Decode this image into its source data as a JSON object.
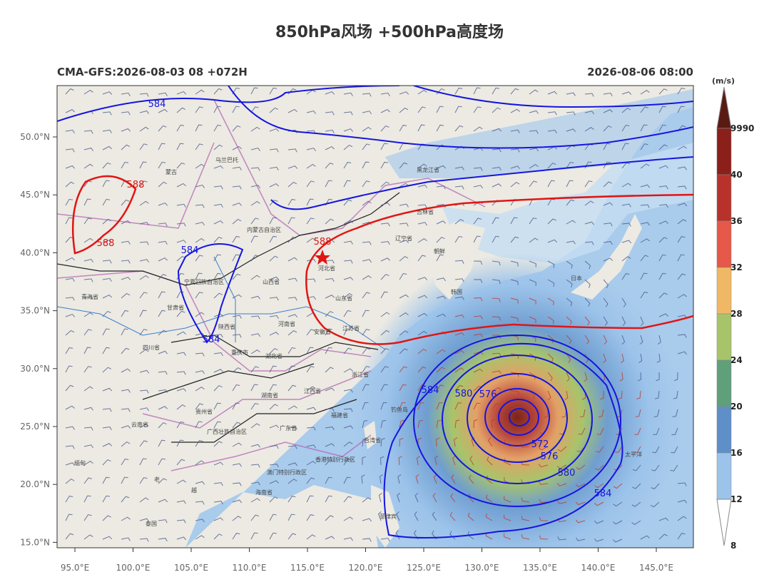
{
  "header": {
    "title": "850hPa风场 +500hPa高度场",
    "run": "CMA-GFS:2026-08-03 08 +072H",
    "valid": "2026-08-06 08:00"
  },
  "map": {
    "lat_labels": [
      "50.0°N",
      "45.0°N",
      "40.0°N",
      "35.0°N",
      "30.0°N",
      "25.0°N",
      "20.0°N",
      "15.0°N"
    ],
    "lon_labels": [
      "95.0°E",
      "100.0°E",
      "105.0°E",
      "110.0°E",
      "115.0°E",
      "120.0°E",
      "125.0°E",
      "130.0°E",
      "135.0°E",
      "140.0°E",
      "145.0°E"
    ],
    "contour_labels": [
      "584",
      "588",
      "588",
      "584",
      "588",
      "584",
      "584",
      "580",
      "576",
      "572",
      "576",
      "580",
      "584"
    ],
    "places": [
      "蒙古",
      "内蒙古自治区",
      "黑龙江省",
      "吉林省",
      "辽宁省",
      "朝鲜",
      "韩国",
      "日本",
      "河北省",
      "山西省",
      "山东省",
      "河南省",
      "陕西省",
      "甘肃省",
      "青海省",
      "四川省",
      "湖北省",
      "安徽省",
      "江苏省",
      "浙江省",
      "江西省",
      "湖南省",
      "贵州省",
      "云南省",
      "广西壮族自治区",
      "广东省",
      "福建省",
      "台湾省",
      "海南省",
      "菲律宾",
      "太平洋",
      "缅甸",
      "老",
      "越",
      "泰国",
      "香港特别行政区",
      "澳门特别行政区",
      "宁夏回族自治区",
      "重庆市",
      "乌兰巴托",
      "钓鱼岛"
    ]
  },
  "colorbar": {
    "unit": "(m/s)",
    "labels": [
      "9990",
      "40",
      "36",
      "32",
      "28",
      "24",
      "20",
      "16",
      "12",
      "8"
    ]
  }
}
